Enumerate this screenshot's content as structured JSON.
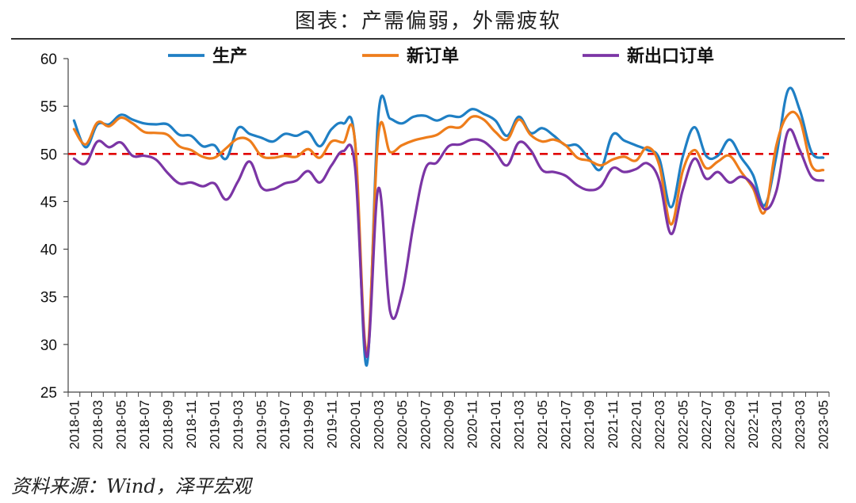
{
  "title": "图表：产需偏弱，外需疲软",
  "source": "资料来源：Wind，泽平宏观",
  "colors": {
    "production": "#1f7fc4",
    "new_orders": "#ee7d1b",
    "export_orders": "#7b35a5",
    "reference": "#e00000"
  },
  "chart_data": {
    "type": "line",
    "ylim": [
      25,
      60
    ],
    "yticks": [
      25,
      30,
      35,
      40,
      45,
      50,
      55,
      60
    ],
    "reference_line": 50,
    "grid": false,
    "legend_position": "top",
    "x_tick_labels": [
      "2018-01",
      "2018-03",
      "2018-05",
      "2018-07",
      "2018-09",
      "2018-11",
      "2019-01",
      "2019-03",
      "2019-05",
      "2019-07",
      "2019-09",
      "2019-11",
      "2020-01",
      "2020-03",
      "2020-05",
      "2020-07",
      "2020-09",
      "2020-11",
      "2021-01",
      "2021-03",
      "2021-05",
      "2021-07",
      "2021-09",
      "2021-11",
      "2022-01",
      "2022-03",
      "2022-05",
      "2022-07",
      "2022-09",
      "2022-11",
      "2023-01",
      "2023-03",
      "2023-05"
    ],
    "x": [
      "2018-01",
      "2018-02",
      "2018-03",
      "2018-04",
      "2018-05",
      "2018-06",
      "2018-07",
      "2018-08",
      "2018-09",
      "2018-10",
      "2018-11",
      "2018-12",
      "2019-01",
      "2019-02",
      "2019-03",
      "2019-04",
      "2019-05",
      "2019-06",
      "2019-07",
      "2019-08",
      "2019-09",
      "2019-10",
      "2019-11",
      "2019-12",
      "2020-01",
      "2020-02",
      "2020-03",
      "2020-04",
      "2020-05",
      "2020-06",
      "2020-07",
      "2020-08",
      "2020-09",
      "2020-10",
      "2020-11",
      "2020-12",
      "2021-01",
      "2021-02",
      "2021-03",
      "2021-04",
      "2021-05",
      "2021-06",
      "2021-07",
      "2021-08",
      "2021-09",
      "2021-10",
      "2021-11",
      "2021-12",
      "2022-01",
      "2022-02",
      "2022-03",
      "2022-04",
      "2022-05",
      "2022-06",
      "2022-07",
      "2022-08",
      "2022-09",
      "2022-10",
      "2022-11",
      "2022-12",
      "2023-01",
      "2023-02",
      "2023-03",
      "2023-04",
      "2023-05"
    ],
    "series": [
      {
        "name": "生产",
        "key": "production",
        "values": [
          53.5,
          50.7,
          53.1,
          53.1,
          54.1,
          53.6,
          53.2,
          53.1,
          53.1,
          52.0,
          51.9,
          50.8,
          50.9,
          49.5,
          52.7,
          52.1,
          51.7,
          51.3,
          52.1,
          51.9,
          52.3,
          50.8,
          52.6,
          53.2,
          51.3,
          27.8,
          54.1,
          53.7,
          53.2,
          53.9,
          54.0,
          53.5,
          54.0,
          53.9,
          54.7,
          54.2,
          53.5,
          51.9,
          53.9,
          52.2,
          52.7,
          51.9,
          50.9,
          50.9,
          49.5,
          48.4,
          52.0,
          51.4,
          50.9,
          50.4,
          49.5,
          44.4,
          49.7,
          52.8,
          49.8,
          49.8,
          51.5,
          49.6,
          47.8,
          44.6,
          49.8,
          56.7,
          54.6,
          50.2,
          49.6
        ]
      },
      {
        "name": "新订单",
        "key": "new_orders",
        "values": [
          52.6,
          51.0,
          53.3,
          52.9,
          53.8,
          53.2,
          52.3,
          52.2,
          52.0,
          50.8,
          50.4,
          49.7,
          49.6,
          50.6,
          51.6,
          51.4,
          49.8,
          49.6,
          49.8,
          49.7,
          50.5,
          49.6,
          51.3,
          51.2,
          51.4,
          29.3,
          52.0,
          50.2,
          50.9,
          51.4,
          51.7,
          52.0,
          52.8,
          52.8,
          53.9,
          53.6,
          52.3,
          51.5,
          53.6,
          52.0,
          51.3,
          51.5,
          50.9,
          49.6,
          49.3,
          48.8,
          49.4,
          49.7,
          49.3,
          50.7,
          48.8,
          42.6,
          48.2,
          50.4,
          48.5,
          49.2,
          49.8,
          48.1,
          46.4,
          43.9,
          50.9,
          54.1,
          53.6,
          48.8,
          48.3
        ]
      },
      {
        "name": "新出口订单",
        "key": "export_orders",
        "values": [
          49.5,
          49.0,
          51.3,
          50.7,
          51.2,
          49.8,
          49.8,
          49.4,
          48.0,
          46.9,
          47.0,
          46.6,
          46.9,
          45.2,
          47.1,
          49.2,
          46.5,
          46.3,
          46.9,
          47.2,
          48.2,
          47.0,
          48.8,
          50.3,
          48.7,
          28.7,
          46.4,
          33.5,
          35.3,
          42.6,
          48.4,
          49.1,
          50.8,
          51.0,
          51.5,
          51.3,
          50.2,
          48.8,
          51.2,
          50.4,
          48.3,
          48.1,
          47.7,
          46.7,
          46.2,
          46.6,
          48.5,
          48.1,
          48.4,
          49.0,
          47.2,
          41.6,
          46.2,
          49.5,
          47.4,
          48.1,
          47.0,
          47.6,
          46.7,
          44.2,
          46.1,
          52.4,
          50.4,
          47.6,
          47.2
        ]
      }
    ]
  }
}
